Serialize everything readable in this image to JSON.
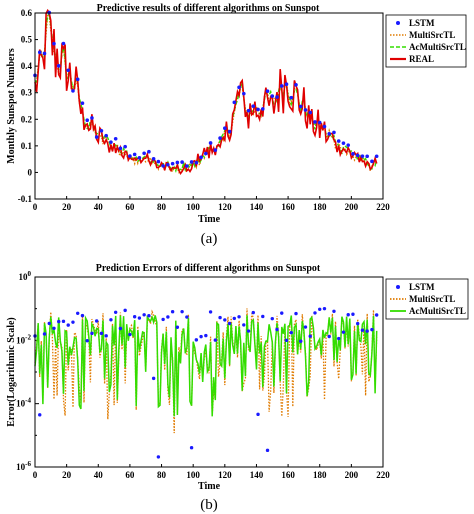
{
  "chart_data": [
    {
      "type": "line",
      "title": "Predictive results of different algorithms on Sunspot",
      "xlabel": "Time",
      "ylabel": "Monthly Sunspot Numbers",
      "xlim": [
        0,
        220
      ],
      "ylim": [
        -0.1,
        0.6
      ],
      "xticks": [
        0,
        20,
        40,
        60,
        80,
        100,
        120,
        140,
        160,
        180,
        200,
        220
      ],
      "yticks": [
        -0.1,
        0,
        0.1,
        0.2,
        0.3,
        0.4,
        0.5,
        0.6
      ],
      "legend_position": "top-right",
      "colors": {
        "LSTM": "#1a1aff",
        "MultiSrcTL": "#e07b00",
        "AcMultiSrcTL": "#33dd00",
        "REAL": "#e00000"
      },
      "anchors": {
        "x": [
          0,
          5,
          8,
          12,
          16,
          20,
          25,
          30,
          35,
          40,
          50,
          60,
          70,
          80,
          90,
          100,
          105,
          110,
          118,
          125,
          130,
          135,
          140,
          145,
          150,
          155,
          160,
          165,
          170,
          175,
          180,
          190,
          200,
          210,
          216
        ],
        "y": [
          0.33,
          0.4,
          0.56,
          0.45,
          0.42,
          0.38,
          0.33,
          0.22,
          0.17,
          0.13,
          0.1,
          0.06,
          0.05,
          0.02,
          0.01,
          0.02,
          0.05,
          0.08,
          0.1,
          0.2,
          0.3,
          0.22,
          0.24,
          0.27,
          0.25,
          0.32,
          0.35,
          0.28,
          0.25,
          0.19,
          0.17,
          0.11,
          0.07,
          0.03,
          0.02
        ]
      },
      "series": [
        {
          "name": "LSTM",
          "style": "dots"
        },
        {
          "name": "MultiSrcTL",
          "style": "dotted"
        },
        {
          "name": "AcMultiSrcTL",
          "style": "dashed"
        },
        {
          "name": "REAL",
          "style": "solid"
        }
      ]
    },
    {
      "type": "line",
      "title": "Prediction Errors of different algorithms on Sunspot",
      "xlabel": "Time",
      "ylabel": "Error(Logarithmic Scale)",
      "xlim": [
        0,
        220
      ],
      "ylim_log10": [
        -6,
        0
      ],
      "xticks": [
        0,
        20,
        40,
        60,
        80,
        100,
        120,
        140,
        160,
        180,
        200,
        220
      ],
      "yticks_exp": [
        -6,
        -4,
        -2,
        0
      ],
      "ytick_base": "10",
      "log_scale": true,
      "legend_position": "top-right",
      "colors": {
        "LSTM": "#1a1aff",
        "MultiSrcTL": "#e07b00",
        "AcMultiSrcTL": "#33dd00"
      },
      "series": [
        {
          "name": "LSTM",
          "style": "dots"
        },
        {
          "name": "MultiSrcTL",
          "style": "dotted"
        },
        {
          "name": "AcMultiSrcTL",
          "style": "solid"
        }
      ]
    }
  ],
  "captions": [
    "(a)",
    "(b)"
  ]
}
